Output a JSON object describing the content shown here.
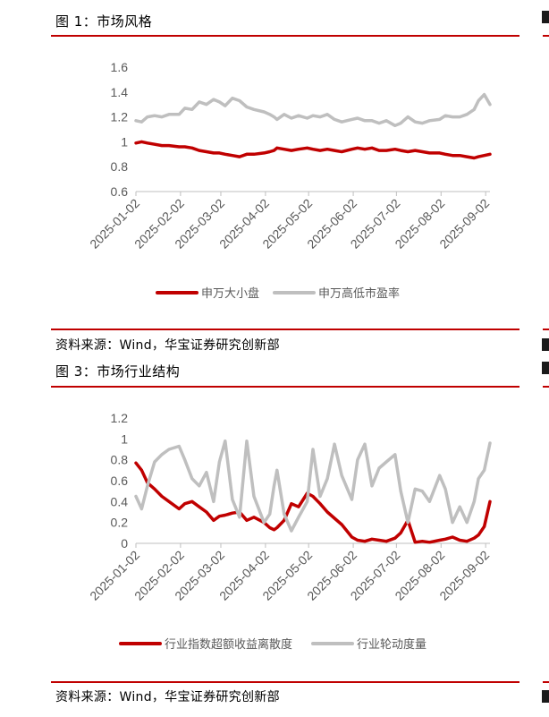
{
  "figures": [
    {
      "title": "图 1：市场风格",
      "source": "资料来源：Wind，华宝证券研究创新部"
    },
    {
      "title": "图 3：市场行业结构",
      "source": "资料来源：Wind，华宝证券研究创新部"
    }
  ],
  "chart_data": [
    {
      "type": "line",
      "title": "",
      "xlabel": "",
      "ylabel": "",
      "ylim": [
        0.6,
        1.6
      ],
      "yticks": [
        0.6,
        0.8,
        1,
        1.2,
        1.4,
        1.6
      ],
      "ytick_labels": [
        "0.6",
        "0.8",
        "1",
        "1.2",
        "1.4",
        "1.6"
      ],
      "xlim": [
        "2025-01-02",
        "2025-09-05"
      ],
      "xticks": [
        "2025-01-02",
        "2025-02-02",
        "2025-03-02",
        "2025-04-02",
        "2025-05-02",
        "2025-06-02",
        "2025-07-02",
        "2025-08-02",
        "2025-09-02"
      ],
      "grid": false,
      "legend": "bottom",
      "series": [
        {
          "name": "申万大小盘",
          "color": "#c00000",
          "width": 3.5,
          "x": [
            "2025-01-02",
            "2025-01-06",
            "2025-01-10",
            "2025-01-15",
            "2025-01-20",
            "2025-01-25",
            "2025-02-01",
            "2025-02-05",
            "2025-02-10",
            "2025-02-15",
            "2025-02-20",
            "2025-02-25",
            "2025-03-01",
            "2025-03-05",
            "2025-03-10",
            "2025-03-15",
            "2025-03-20",
            "2025-03-25",
            "2025-04-01",
            "2025-04-05",
            "2025-04-08",
            "2025-04-10",
            "2025-04-15",
            "2025-04-20",
            "2025-04-25",
            "2025-05-01",
            "2025-05-05",
            "2025-05-10",
            "2025-05-15",
            "2025-05-20",
            "2025-05-25",
            "2025-06-01",
            "2025-06-05",
            "2025-06-10",
            "2025-06-15",
            "2025-06-20",
            "2025-06-25",
            "2025-07-01",
            "2025-07-05",
            "2025-07-10",
            "2025-07-15",
            "2025-07-20",
            "2025-07-25",
            "2025-08-01",
            "2025-08-05",
            "2025-08-10",
            "2025-08-15",
            "2025-08-20",
            "2025-08-25",
            "2025-08-28",
            "2025-09-01",
            "2025-09-05"
          ],
          "values": [
            0.99,
            1.0,
            0.99,
            0.98,
            0.97,
            0.97,
            0.96,
            0.96,
            0.95,
            0.93,
            0.92,
            0.91,
            0.91,
            0.9,
            0.89,
            0.88,
            0.9,
            0.9,
            0.91,
            0.92,
            0.93,
            0.95,
            0.94,
            0.93,
            0.94,
            0.95,
            0.94,
            0.93,
            0.94,
            0.93,
            0.92,
            0.94,
            0.95,
            0.94,
            0.95,
            0.93,
            0.93,
            0.94,
            0.93,
            0.92,
            0.93,
            0.92,
            0.91,
            0.91,
            0.9,
            0.89,
            0.89,
            0.88,
            0.87,
            0.88,
            0.89,
            0.9
          ]
        },
        {
          "name": "申万高低市盈率",
          "color": "#bfbfbf",
          "width": 3.5,
          "x": [
            "2025-01-02",
            "2025-01-06",
            "2025-01-10",
            "2025-01-15",
            "2025-01-20",
            "2025-01-25",
            "2025-02-01",
            "2025-02-05",
            "2025-02-10",
            "2025-02-15",
            "2025-02-20",
            "2025-02-25",
            "2025-03-01",
            "2025-03-05",
            "2025-03-10",
            "2025-03-15",
            "2025-03-20",
            "2025-03-25",
            "2025-04-01",
            "2025-04-05",
            "2025-04-08",
            "2025-04-10",
            "2025-04-15",
            "2025-04-20",
            "2025-04-25",
            "2025-05-01",
            "2025-05-05",
            "2025-05-10",
            "2025-05-15",
            "2025-05-20",
            "2025-05-25",
            "2025-06-01",
            "2025-06-05",
            "2025-06-10",
            "2025-06-15",
            "2025-06-20",
            "2025-06-25",
            "2025-07-01",
            "2025-07-05",
            "2025-07-10",
            "2025-07-15",
            "2025-07-20",
            "2025-07-25",
            "2025-08-01",
            "2025-08-05",
            "2025-08-10",
            "2025-08-15",
            "2025-08-20",
            "2025-08-25",
            "2025-08-28",
            "2025-09-01",
            "2025-09-05"
          ],
          "values": [
            1.17,
            1.16,
            1.2,
            1.21,
            1.2,
            1.22,
            1.22,
            1.27,
            1.26,
            1.32,
            1.3,
            1.34,
            1.32,
            1.29,
            1.35,
            1.33,
            1.28,
            1.26,
            1.24,
            1.22,
            1.2,
            1.18,
            1.22,
            1.19,
            1.21,
            1.19,
            1.21,
            1.2,
            1.22,
            1.18,
            1.16,
            1.18,
            1.19,
            1.17,
            1.17,
            1.15,
            1.17,
            1.13,
            1.15,
            1.2,
            1.16,
            1.15,
            1.17,
            1.18,
            1.21,
            1.2,
            1.2,
            1.22,
            1.26,
            1.33,
            1.38,
            1.3
          ]
        }
      ]
    },
    {
      "type": "line",
      "title": "",
      "xlabel": "",
      "ylabel": "",
      "ylim": [
        0,
        1.2
      ],
      "yticks": [
        0,
        0.2,
        0.4,
        0.6,
        0.8,
        1,
        1.2
      ],
      "ytick_labels": [
        "0",
        "0.2",
        "0.4",
        "0.6",
        "0.8",
        "1",
        "1.2"
      ],
      "xlim": [
        "2025-01-02",
        "2025-09-05"
      ],
      "xticks": [
        "2025-01-02",
        "2025-02-02",
        "2025-03-02",
        "2025-04-02",
        "2025-05-02",
        "2025-06-02",
        "2025-07-02",
        "2025-08-02",
        "2025-09-02"
      ],
      "grid": false,
      "legend": "bottom",
      "series": [
        {
          "name": "行业指数超额收益离散度",
          "color": "#c00000",
          "width": 3.5,
          "x": [
            "2025-01-02",
            "2025-01-06",
            "2025-01-10",
            "2025-01-15",
            "2025-01-20",
            "2025-01-25",
            "2025-02-01",
            "2025-02-05",
            "2025-02-10",
            "2025-02-15",
            "2025-02-20",
            "2025-02-25",
            "2025-03-01",
            "2025-03-05",
            "2025-03-10",
            "2025-03-15",
            "2025-03-20",
            "2025-03-25",
            "2025-04-01",
            "2025-04-05",
            "2025-04-08",
            "2025-04-10",
            "2025-04-15",
            "2025-04-20",
            "2025-04-25",
            "2025-05-01",
            "2025-05-05",
            "2025-05-10",
            "2025-05-15",
            "2025-05-20",
            "2025-05-25",
            "2025-06-01",
            "2025-06-05",
            "2025-06-10",
            "2025-06-15",
            "2025-06-20",
            "2025-06-25",
            "2025-07-01",
            "2025-07-05",
            "2025-07-10",
            "2025-07-15",
            "2025-07-20",
            "2025-07-25",
            "2025-08-01",
            "2025-08-05",
            "2025-08-10",
            "2025-08-15",
            "2025-08-20",
            "2025-08-25",
            "2025-08-28",
            "2025-09-01",
            "2025-09-05"
          ],
          "values": [
            0.77,
            0.7,
            0.58,
            0.52,
            0.45,
            0.4,
            0.33,
            0.38,
            0.4,
            0.35,
            0.3,
            0.22,
            0.26,
            0.27,
            0.29,
            0.3,
            0.22,
            0.25,
            0.2,
            0.15,
            0.13,
            0.15,
            0.22,
            0.38,
            0.35,
            0.48,
            0.45,
            0.38,
            0.3,
            0.24,
            0.18,
            0.06,
            0.03,
            0.02,
            0.04,
            0.03,
            0.02,
            0.05,
            0.1,
            0.22,
            0.01,
            0.02,
            0.01,
            0.03,
            0.04,
            0.06,
            0.03,
            0.02,
            0.05,
            0.08,
            0.16,
            0.4
          ]
        },
        {
          "name": "行业轮动度量",
          "color": "#bfbfbf",
          "width": 3.5,
          "x": [
            "2025-01-02",
            "2025-01-06",
            "2025-01-10",
            "2025-01-15",
            "2025-01-20",
            "2025-01-25",
            "2025-02-01",
            "2025-02-05",
            "2025-02-10",
            "2025-02-15",
            "2025-02-20",
            "2025-02-25",
            "2025-03-01",
            "2025-03-05",
            "2025-03-10",
            "2025-03-15",
            "2025-03-20",
            "2025-03-25",
            "2025-04-01",
            "2025-04-05",
            "2025-04-08",
            "2025-04-10",
            "2025-04-15",
            "2025-04-20",
            "2025-04-25",
            "2025-05-01",
            "2025-05-05",
            "2025-05-10",
            "2025-05-15",
            "2025-05-20",
            "2025-05-25",
            "2025-06-01",
            "2025-06-05",
            "2025-06-10",
            "2025-06-15",
            "2025-06-20",
            "2025-06-25",
            "2025-07-01",
            "2025-07-05",
            "2025-07-10",
            "2025-07-15",
            "2025-07-20",
            "2025-07-25",
            "2025-08-01",
            "2025-08-05",
            "2025-08-10",
            "2025-08-15",
            "2025-08-20",
            "2025-08-25",
            "2025-08-28",
            "2025-09-01",
            "2025-09-05"
          ],
          "values": [
            0.45,
            0.33,
            0.55,
            0.78,
            0.85,
            0.9,
            0.93,
            0.8,
            0.62,
            0.55,
            0.68,
            0.4,
            0.78,
            0.98,
            0.42,
            0.25,
            0.98,
            0.45,
            0.2,
            0.28,
            0.55,
            0.7,
            0.28,
            0.12,
            0.25,
            0.4,
            0.9,
            0.45,
            0.62,
            0.95,
            0.65,
            0.42,
            0.8,
            0.95,
            0.55,
            0.72,
            0.78,
            0.85,
            0.5,
            0.2,
            0.52,
            0.5,
            0.4,
            0.65,
            0.52,
            0.2,
            0.35,
            0.2,
            0.4,
            0.62,
            0.7,
            0.96
          ]
        }
      ]
    }
  ]
}
